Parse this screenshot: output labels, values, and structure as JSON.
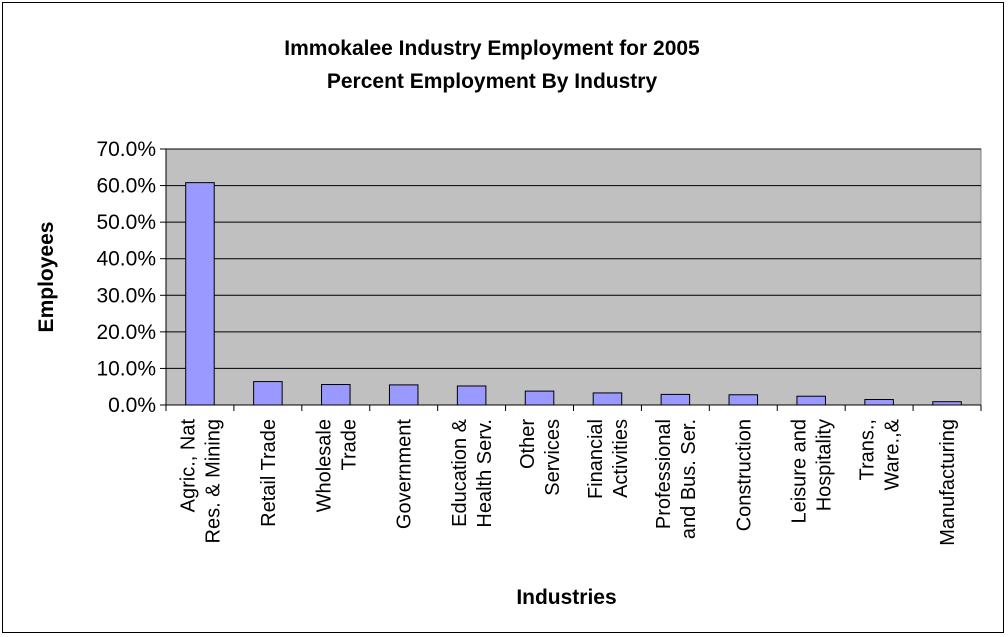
{
  "chart_data": {
    "type": "bar",
    "title": "Immokalee Industry Employment for 2005",
    "subtitle": "Percent Employment By Industry",
    "xlabel": "Industries",
    "ylabel": "Employees",
    "ylim": [
      0,
      70
    ],
    "yticks": [
      0,
      10,
      20,
      30,
      40,
      50,
      60,
      70
    ],
    "ytick_labels": [
      "0.0%",
      "10.0%",
      "20.0%",
      "30.0%",
      "40.0%",
      "50.0%",
      "60.0%",
      "70.0%"
    ],
    "grid": true,
    "legend": "none",
    "categories": [
      [
        "Agric., Nat",
        "Res. & Mining"
      ],
      [
        "Retail Trade"
      ],
      [
        "Wholesale",
        "Trade"
      ],
      [
        "Government"
      ],
      [
        "Education &",
        "Health Serv."
      ],
      [
        "Other",
        "Services"
      ],
      [
        "Financial",
        "Activities"
      ],
      [
        "Professional",
        "and Bus. Ser."
      ],
      [
        "Construction"
      ],
      [
        "Leisure and",
        "Hospitality"
      ],
      [
        "Trans.,",
        "Ware.,&"
      ],
      [
        "Manufacturing"
      ]
    ],
    "values": [
      60.8,
      6.4,
      5.6,
      5.5,
      5.2,
      3.8,
      3.3,
      2.9,
      2.8,
      2.4,
      1.5,
      0.9
    ],
    "colors": {
      "bar_fill": "#9999ff",
      "bar_stroke": "#000000",
      "plot_background": "#c0c0c0",
      "gridline": "#000000"
    }
  }
}
